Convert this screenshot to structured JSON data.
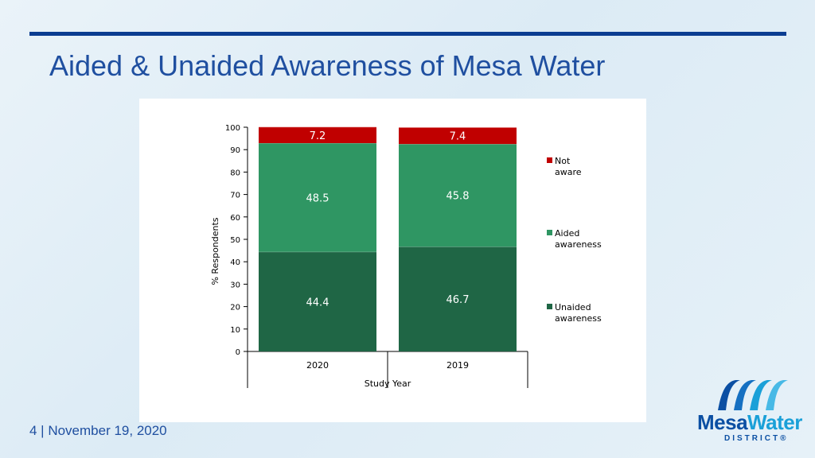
{
  "slide": {
    "title": "Aided & Unaided Awareness of Mesa Water",
    "footer": "4 | November 19, 2020",
    "logo": {
      "word_1": "Mesa",
      "word_2": "Water",
      "subtitle": "DISTRICT®"
    }
  },
  "chart_data": {
    "type": "bar",
    "stacked": true,
    "categories": [
      "2020",
      "2019"
    ],
    "series": [
      {
        "name": "Unaided awareness",
        "color": "#1f6645",
        "values": [
          44.4,
          46.7
        ]
      },
      {
        "name": "Aided awareness",
        "color": "#2f9663",
        "values": [
          48.5,
          45.8
        ]
      },
      {
        "name": "Not aware",
        "color": "#c00000",
        "values": [
          7.2,
          7.4
        ]
      }
    ],
    "xlabel": "Study Year",
    "ylabel": "% Respondents",
    "ylim": [
      0,
      100
    ],
    "yticks": [
      0,
      10,
      20,
      30,
      40,
      50,
      60,
      70,
      80,
      90,
      100
    ],
    "legend": {
      "placement": "right",
      "order": [
        "Not aware",
        "Aided awareness",
        "Unaided awareness"
      ]
    },
    "grid": false
  }
}
